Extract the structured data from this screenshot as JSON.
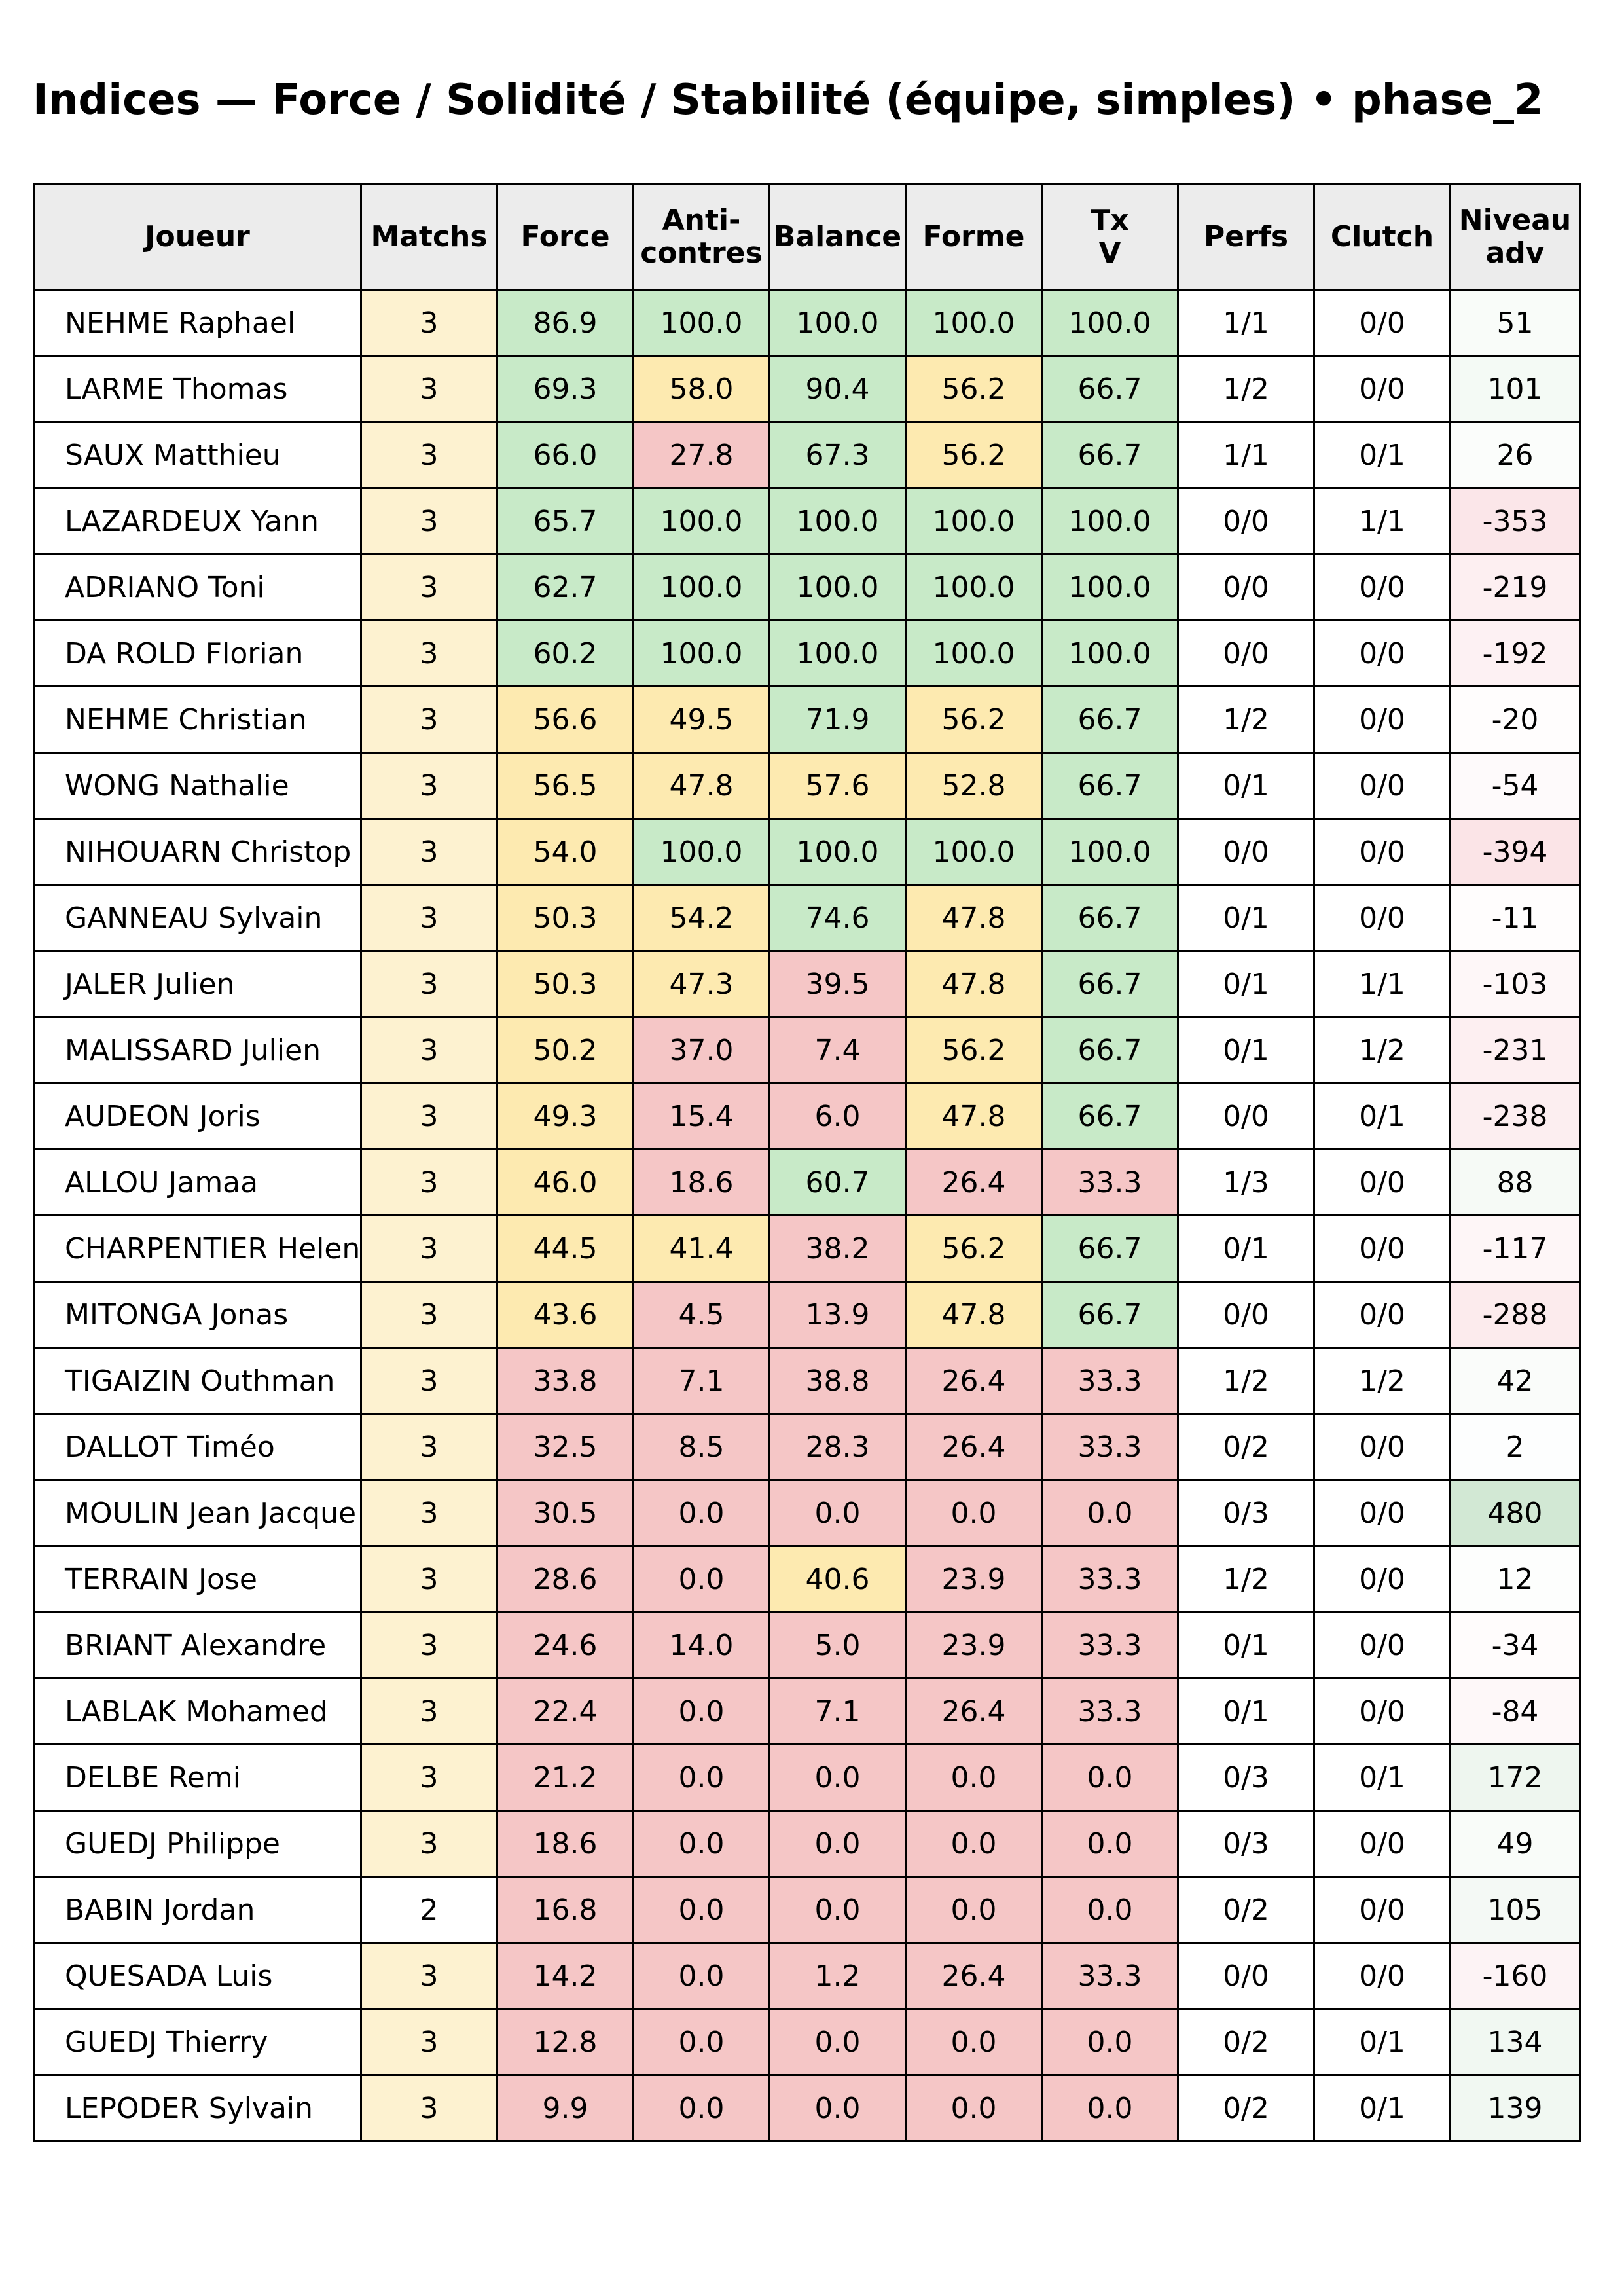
{
  "title": "Indices — Force / Solidité / Stabilité (équipe, simples) • phase_2",
  "columns": [
    "Joueur",
    "Matchs",
    "Force",
    "Anti-\ncontres",
    "Balance",
    "Forme",
    "Tx\nV",
    "Perfs",
    "Clutch",
    "Niveau\nadv"
  ],
  "colors": {
    "green": "#c8eac8",
    "yellow": "#fdeab0",
    "red": "#f5c6c6",
    "cream": "#fdf2d0",
    "header": "#ececec"
  },
  "rows": [
    {
      "joueur": "NEHME Raphael",
      "matchs": "3",
      "force": "86.9",
      "anticontres": "100.0",
      "balance": "100.0",
      "forme": "100.0",
      "txv": "100.0",
      "perfs": "1/1",
      "clutch": "0/0",
      "niveau": "51",
      "niveau_value": 51
    },
    {
      "joueur": "LARME Thomas",
      "matchs": "3",
      "force": "69.3",
      "anticontres": "58.0",
      "balance": "90.4",
      "forme": "56.2",
      "txv": "66.7",
      "perfs": "1/2",
      "clutch": "0/0",
      "niveau": "101",
      "niveau_value": 101
    },
    {
      "joueur": "SAUX Matthieu",
      "matchs": "3",
      "force": "66.0",
      "anticontres": "27.8",
      "balance": "67.3",
      "forme": "56.2",
      "txv": "66.7",
      "perfs": "1/1",
      "clutch": "0/1",
      "niveau": "26",
      "niveau_value": 26
    },
    {
      "joueur": "LAZARDEUX Yann",
      "matchs": "3",
      "force": "65.7",
      "anticontres": "100.0",
      "balance": "100.0",
      "forme": "100.0",
      "txv": "100.0",
      "perfs": "0/0",
      "clutch": "1/1",
      "niveau": "-353",
      "niveau_value": -353
    },
    {
      "joueur": "ADRIANO Toni",
      "matchs": "3",
      "force": "62.7",
      "anticontres": "100.0",
      "balance": "100.0",
      "forme": "100.0",
      "txv": "100.0",
      "perfs": "0/0",
      "clutch": "0/0",
      "niveau": "-219",
      "niveau_value": -219
    },
    {
      "joueur": "DA ROLD Florian",
      "matchs": "3",
      "force": "60.2",
      "anticontres": "100.0",
      "balance": "100.0",
      "forme": "100.0",
      "txv": "100.0",
      "perfs": "0/0",
      "clutch": "0/0",
      "niveau": "-192",
      "niveau_value": -192
    },
    {
      "joueur": "NEHME Christian",
      "matchs": "3",
      "force": "56.6",
      "anticontres": "49.5",
      "balance": "71.9",
      "forme": "56.2",
      "txv": "66.7",
      "perfs": "1/2",
      "clutch": "0/0",
      "niveau": "-20",
      "niveau_value": -20
    },
    {
      "joueur": "WONG Nathalie",
      "matchs": "3",
      "force": "56.5",
      "anticontres": "47.8",
      "balance": "57.6",
      "forme": "52.8",
      "txv": "66.7",
      "perfs": "0/1",
      "clutch": "0/0",
      "niveau": "-54",
      "niveau_value": -54
    },
    {
      "joueur": "NIHOUARN Christop",
      "matchs": "3",
      "force": "54.0",
      "anticontres": "100.0",
      "balance": "100.0",
      "forme": "100.0",
      "txv": "100.0",
      "perfs": "0/0",
      "clutch": "0/0",
      "niveau": "-394",
      "niveau_value": -394
    },
    {
      "joueur": "GANNEAU Sylvain",
      "matchs": "3",
      "force": "50.3",
      "anticontres": "54.2",
      "balance": "74.6",
      "forme": "47.8",
      "txv": "66.7",
      "perfs": "0/1",
      "clutch": "0/0",
      "niveau": "-11",
      "niveau_value": -11
    },
    {
      "joueur": "JALER Julien",
      "matchs": "3",
      "force": "50.3",
      "anticontres": "47.3",
      "balance": "39.5",
      "forme": "47.8",
      "txv": "66.7",
      "perfs": "0/1",
      "clutch": "1/1",
      "niveau": "-103",
      "niveau_value": -103
    },
    {
      "joueur": "MALISSARD Julien",
      "matchs": "3",
      "force": "50.2",
      "anticontres": "37.0",
      "balance": "7.4",
      "forme": "56.2",
      "txv": "66.7",
      "perfs": "0/1",
      "clutch": "1/2",
      "niveau": "-231",
      "niveau_value": -231
    },
    {
      "joueur": "AUDEON Joris",
      "matchs": "3",
      "force": "49.3",
      "anticontres": "15.4",
      "balance": "6.0",
      "forme": "47.8",
      "txv": "66.7",
      "perfs": "0/0",
      "clutch": "0/1",
      "niveau": "-238",
      "niveau_value": -238
    },
    {
      "joueur": "ALLOU Jamaa",
      "matchs": "3",
      "force": "46.0",
      "anticontres": "18.6",
      "balance": "60.7",
      "forme": "26.4",
      "txv": "33.3",
      "perfs": "1/3",
      "clutch": "0/0",
      "niveau": "88",
      "niveau_value": 88
    },
    {
      "joueur": "CHARPENTIER Helen",
      "matchs": "3",
      "force": "44.5",
      "anticontres": "41.4",
      "balance": "38.2",
      "forme": "56.2",
      "txv": "66.7",
      "perfs": "0/1",
      "clutch": "0/0",
      "niveau": "-117",
      "niveau_value": -117
    },
    {
      "joueur": "MITONGA Jonas",
      "matchs": "3",
      "force": "43.6",
      "anticontres": "4.5",
      "balance": "13.9",
      "forme": "47.8",
      "txv": "66.7",
      "perfs": "0/0",
      "clutch": "0/0",
      "niveau": "-288",
      "niveau_value": -288
    },
    {
      "joueur": "TIGAIZIN Outhman",
      "matchs": "3",
      "force": "33.8",
      "anticontres": "7.1",
      "balance": "38.8",
      "forme": "26.4",
      "txv": "33.3",
      "perfs": "1/2",
      "clutch": "1/2",
      "niveau": "42",
      "niveau_value": 42
    },
    {
      "joueur": "DALLOT Timéo",
      "matchs": "3",
      "force": "32.5",
      "anticontres": "8.5",
      "balance": "28.3",
      "forme": "26.4",
      "txv": "33.3",
      "perfs": "0/2",
      "clutch": "0/0",
      "niveau": "2",
      "niveau_value": 2
    },
    {
      "joueur": "MOULIN Jean Jacque",
      "matchs": "3",
      "force": "30.5",
      "anticontres": "0.0",
      "balance": "0.0",
      "forme": "0.0",
      "txv": "0.0",
      "perfs": "0/3",
      "clutch": "0/0",
      "niveau": "480",
      "niveau_value": 480
    },
    {
      "joueur": "TERRAIN Jose",
      "matchs": "3",
      "force": "28.6",
      "anticontres": "0.0",
      "balance": "40.6",
      "forme": "23.9",
      "txv": "33.3",
      "perfs": "1/2",
      "clutch": "0/0",
      "niveau": "12",
      "niveau_value": 12
    },
    {
      "joueur": "BRIANT Alexandre",
      "matchs": "3",
      "force": "24.6",
      "anticontres": "14.0",
      "balance": "5.0",
      "forme": "23.9",
      "txv": "33.3",
      "perfs": "0/1",
      "clutch": "0/0",
      "niveau": "-34",
      "niveau_value": -34
    },
    {
      "joueur": "LABLAK Mohamed",
      "matchs": "3",
      "force": "22.4",
      "anticontres": "0.0",
      "balance": "7.1",
      "forme": "26.4",
      "txv": "33.3",
      "perfs": "0/1",
      "clutch": "0/0",
      "niveau": "-84",
      "niveau_value": -84
    },
    {
      "joueur": "DELBE Remi",
      "matchs": "3",
      "force": "21.2",
      "anticontres": "0.0",
      "balance": "0.0",
      "forme": "0.0",
      "txv": "0.0",
      "perfs": "0/3",
      "clutch": "0/1",
      "niveau": "172",
      "niveau_value": 172
    },
    {
      "joueur": "GUEDJ Philippe",
      "matchs": "3",
      "force": "18.6",
      "anticontres": "0.0",
      "balance": "0.0",
      "forme": "0.0",
      "txv": "0.0",
      "perfs": "0/3",
      "clutch": "0/0",
      "niveau": "49",
      "niveau_value": 49
    },
    {
      "joueur": "BABIN Jordan",
      "matchs": "2",
      "force": "16.8",
      "anticontres": "0.0",
      "balance": "0.0",
      "forme": "0.0",
      "txv": "0.0",
      "perfs": "0/2",
      "clutch": "0/0",
      "niveau": "105",
      "niveau_value": 105
    },
    {
      "joueur": "QUESADA Luis",
      "matchs": "3",
      "force": "14.2",
      "anticontres": "0.0",
      "balance": "1.2",
      "forme": "26.4",
      "txv": "33.3",
      "perfs": "0/0",
      "clutch": "0/0",
      "niveau": "-160",
      "niveau_value": -160
    },
    {
      "joueur": "GUEDJ Thierry",
      "matchs": "3",
      "force": "12.8",
      "anticontres": "0.0",
      "balance": "0.0",
      "forme": "0.0",
      "txv": "0.0",
      "perfs": "0/2",
      "clutch": "0/1",
      "niveau": "134",
      "niveau_value": 134
    },
    {
      "joueur": "LEPODER Sylvain",
      "matchs": "3",
      "force": "9.9",
      "anticontres": "0.0",
      "balance": "0.0",
      "forme": "0.0",
      "txv": "0.0",
      "perfs": "0/2",
      "clutch": "0/1",
      "niveau": "139",
      "niveau_value": 139
    }
  ]
}
